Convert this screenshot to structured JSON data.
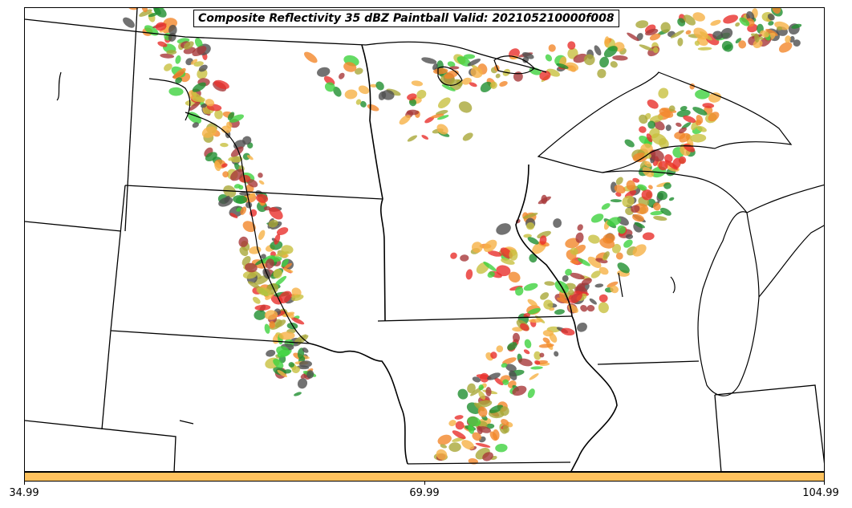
{
  "title": "Composite Reflectivity 35 dBZ Paintball Valid: 202105210000f008",
  "colorbar": {
    "fill_color": "#FFC25E",
    "ticks": [
      "34.99",
      "69.99",
      "104.99"
    ]
  },
  "member_colors": [
    "#e8302c",
    "#f3872a",
    "#f6b146",
    "#3fd23f",
    "#1f8f2f",
    "#a9a838",
    "#a8383a",
    "#4f4f4f",
    "#c8c040"
  ],
  "background_color": "#ffffff",
  "boundary_color": "#000000"
}
